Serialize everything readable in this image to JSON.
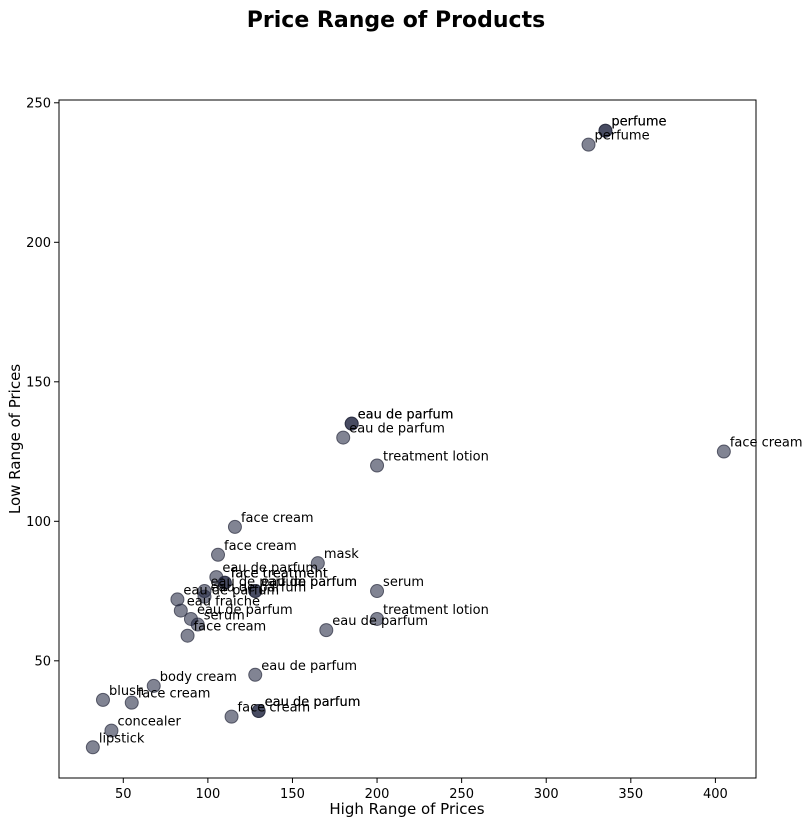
{
  "chart_data": {
    "type": "scatter",
    "title": "Price Range of Products",
    "xlabel": "High Range of Prices",
    "ylabel": "Low Range of Prices",
    "xlim": [
      12,
      424
    ],
    "ylim": [
      8,
      251
    ],
    "xticks": [
      50,
      100,
      150,
      200,
      250,
      300,
      350,
      400
    ],
    "yticks": [
      50,
      100,
      150,
      200,
      250
    ],
    "grid": false,
    "marker_color": "#1a1f3a",
    "marker_edge": "#262a3c",
    "marker_alpha": 0.55,
    "points": [
      {
        "x": 32,
        "y": 19,
        "label": "lipstick"
      },
      {
        "x": 43,
        "y": 25,
        "label": "concealer"
      },
      {
        "x": 38,
        "y": 36,
        "label": "blush"
      },
      {
        "x": 55,
        "y": 35,
        "label": "face cream"
      },
      {
        "x": 68,
        "y": 41,
        "label": "body cream"
      },
      {
        "x": 82,
        "y": 72,
        "label": "eau de parfum"
      },
      {
        "x": 84,
        "y": 68,
        "label": "eau fraiche"
      },
      {
        "x": 90,
        "y": 65,
        "label": "eau de parfum"
      },
      {
        "x": 94,
        "y": 63,
        "label": "serum"
      },
      {
        "x": 88,
        "y": 59,
        "label": "face cream"
      },
      {
        "x": 98,
        "y": 75,
        "label": "eau de parfum"
      },
      {
        "x": 98,
        "y": 73,
        "label": "eau de parfum"
      },
      {
        "x": 105,
        "y": 80,
        "label": "eau de parfum"
      },
      {
        "x": 110,
        "y": 78,
        "label": "face treatment"
      },
      {
        "x": 110,
        "y": 78,
        "label": "face treatment"
      },
      {
        "x": 128,
        "y": 75,
        "label": "eau de parfum"
      },
      {
        "x": 128,
        "y": 75,
        "label": "eau de parfum"
      },
      {
        "x": 106,
        "y": 88,
        "label": "face cream"
      },
      {
        "x": 116,
        "y": 98,
        "label": "face cream"
      },
      {
        "x": 165,
        "y": 85,
        "label": "mask"
      },
      {
        "x": 200,
        "y": 75,
        "label": "serum"
      },
      {
        "x": 200,
        "y": 65,
        "label": "treatment lotion"
      },
      {
        "x": 170,
        "y": 61,
        "label": "eau de parfum"
      },
      {
        "x": 128,
        "y": 45,
        "label": "eau de parfum"
      },
      {
        "x": 130,
        "y": 32,
        "label": "eau de parfum"
      },
      {
        "x": 130,
        "y": 32,
        "label": "eau de parfum"
      },
      {
        "x": 114,
        "y": 30,
        "label": "face cream"
      },
      {
        "x": 200,
        "y": 120,
        "label": "treatment lotion"
      },
      {
        "x": 185,
        "y": 135,
        "label": "eau de parfum"
      },
      {
        "x": 185,
        "y": 135,
        "label": "eau de parfum"
      },
      {
        "x": 180,
        "y": 130,
        "label": "eau de parfum"
      },
      {
        "x": 335,
        "y": 240,
        "label": "perfume"
      },
      {
        "x": 335,
        "y": 240,
        "label": "perfume"
      },
      {
        "x": 325,
        "y": 235,
        "label": "perfume"
      },
      {
        "x": 405,
        "y": 125,
        "label": "face cream"
      }
    ]
  }
}
